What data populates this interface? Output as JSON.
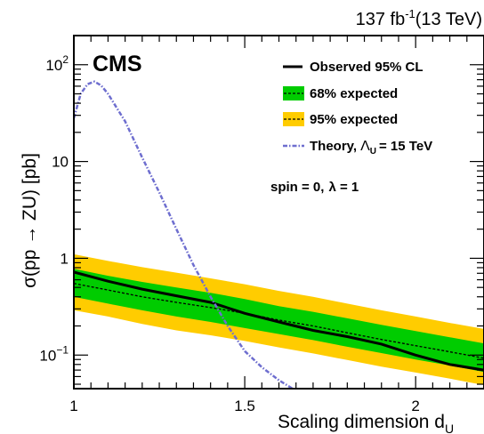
{
  "header": {
    "lumi_value": "137 fb",
    "lumi_exp": "-1",
    "lumi_energy": "(13 TeV)",
    "experiment": "CMS"
  },
  "note": {
    "spin_label": "spin = 0,",
    "lambda_label": "λ = 1"
  },
  "legend": {
    "observed": "Observed 95% CL",
    "expected68": "68% expected",
    "expected95": "95% expected",
    "theory_prefix": "Theory,",
    "theory_sym": "Λ",
    "theory_sub": "U",
    "theory_suffix": "= 15 TeV"
  },
  "colors": {
    "band95": "#ffcc00",
    "band68": "#00cc00",
    "observed": "#000000",
    "expected": "#000000",
    "theory": "#6e6ecf"
  },
  "chart_data": {
    "type": "line",
    "title": "",
    "xlabel_main": "Scaling dimension d",
    "xlabel_sub": "U",
    "ylabel": "σ(pp → ZU) [pb]",
    "xlim": [
      1.0,
      2.2
    ],
    "ylim": [
      0.045,
      200
    ],
    "yscale": "log",
    "x_ticks": [
      {
        "value": 1.0,
        "label": "1"
      },
      {
        "value": 1.5,
        "label": "1.5"
      },
      {
        "value": 2.0,
        "label": "2"
      }
    ],
    "y_ticks": [
      {
        "value": 0.1,
        "base": "10",
        "exp": "−1"
      },
      {
        "value": 1,
        "base": "1",
        "exp": ""
      },
      {
        "value": 10,
        "base": "10",
        "exp": ""
      },
      {
        "value": 100,
        "base": "10",
        "exp": "2"
      }
    ],
    "series": [
      {
        "name": "Observed 95% CL",
        "x": [
          1.0,
          1.1,
          1.2,
          1.3,
          1.4,
          1.5,
          1.6,
          1.7,
          1.8,
          1.9,
          2.0,
          2.1,
          2.2
        ],
        "values": [
          0.72,
          0.58,
          0.48,
          0.41,
          0.35,
          0.27,
          0.22,
          0.18,
          0.155,
          0.13,
          0.1,
          0.08,
          0.07
        ]
      },
      {
        "name": "68% expected",
        "x": [
          1.0,
          1.1,
          1.2,
          1.3,
          1.4,
          1.5,
          1.6,
          1.7,
          1.8,
          1.9,
          2.0,
          2.1,
          2.2
        ],
        "values": [
          0.55,
          0.47,
          0.4,
          0.35,
          0.31,
          0.27,
          0.23,
          0.2,
          0.17,
          0.145,
          0.125,
          0.108,
          0.093
        ],
        "band_low": [
          0.4,
          0.34,
          0.29,
          0.25,
          0.22,
          0.19,
          0.165,
          0.143,
          0.122,
          0.105,
          0.09,
          0.078,
          0.067
        ],
        "band_high": [
          0.78,
          0.66,
          0.57,
          0.5,
          0.44,
          0.38,
          0.32,
          0.28,
          0.24,
          0.205,
          0.177,
          0.153,
          0.132
        ]
      },
      {
        "name": "95% expected",
        "band_low": [
          0.29,
          0.25,
          0.21,
          0.18,
          0.16,
          0.14,
          0.12,
          0.104,
          0.089,
          0.076,
          0.066,
          0.057,
          0.049
        ],
        "band_high": [
          1.1,
          0.94,
          0.81,
          0.71,
          0.62,
          0.54,
          0.46,
          0.4,
          0.34,
          0.29,
          0.25,
          0.215,
          0.186
        ]
      },
      {
        "name": "Theory, ΛU = 15 TeV",
        "x": [
          1.0,
          1.02,
          1.04,
          1.06,
          1.08,
          1.1,
          1.15,
          1.2,
          1.25,
          1.3,
          1.35,
          1.4,
          1.45,
          1.5,
          1.55,
          1.6,
          1.64
        ],
        "values": [
          28,
          50,
          63,
          67,
          61,
          50,
          26,
          11,
          4.8,
          2.0,
          0.85,
          0.4,
          0.2,
          0.11,
          0.075,
          0.055,
          0.045
        ]
      }
    ]
  }
}
